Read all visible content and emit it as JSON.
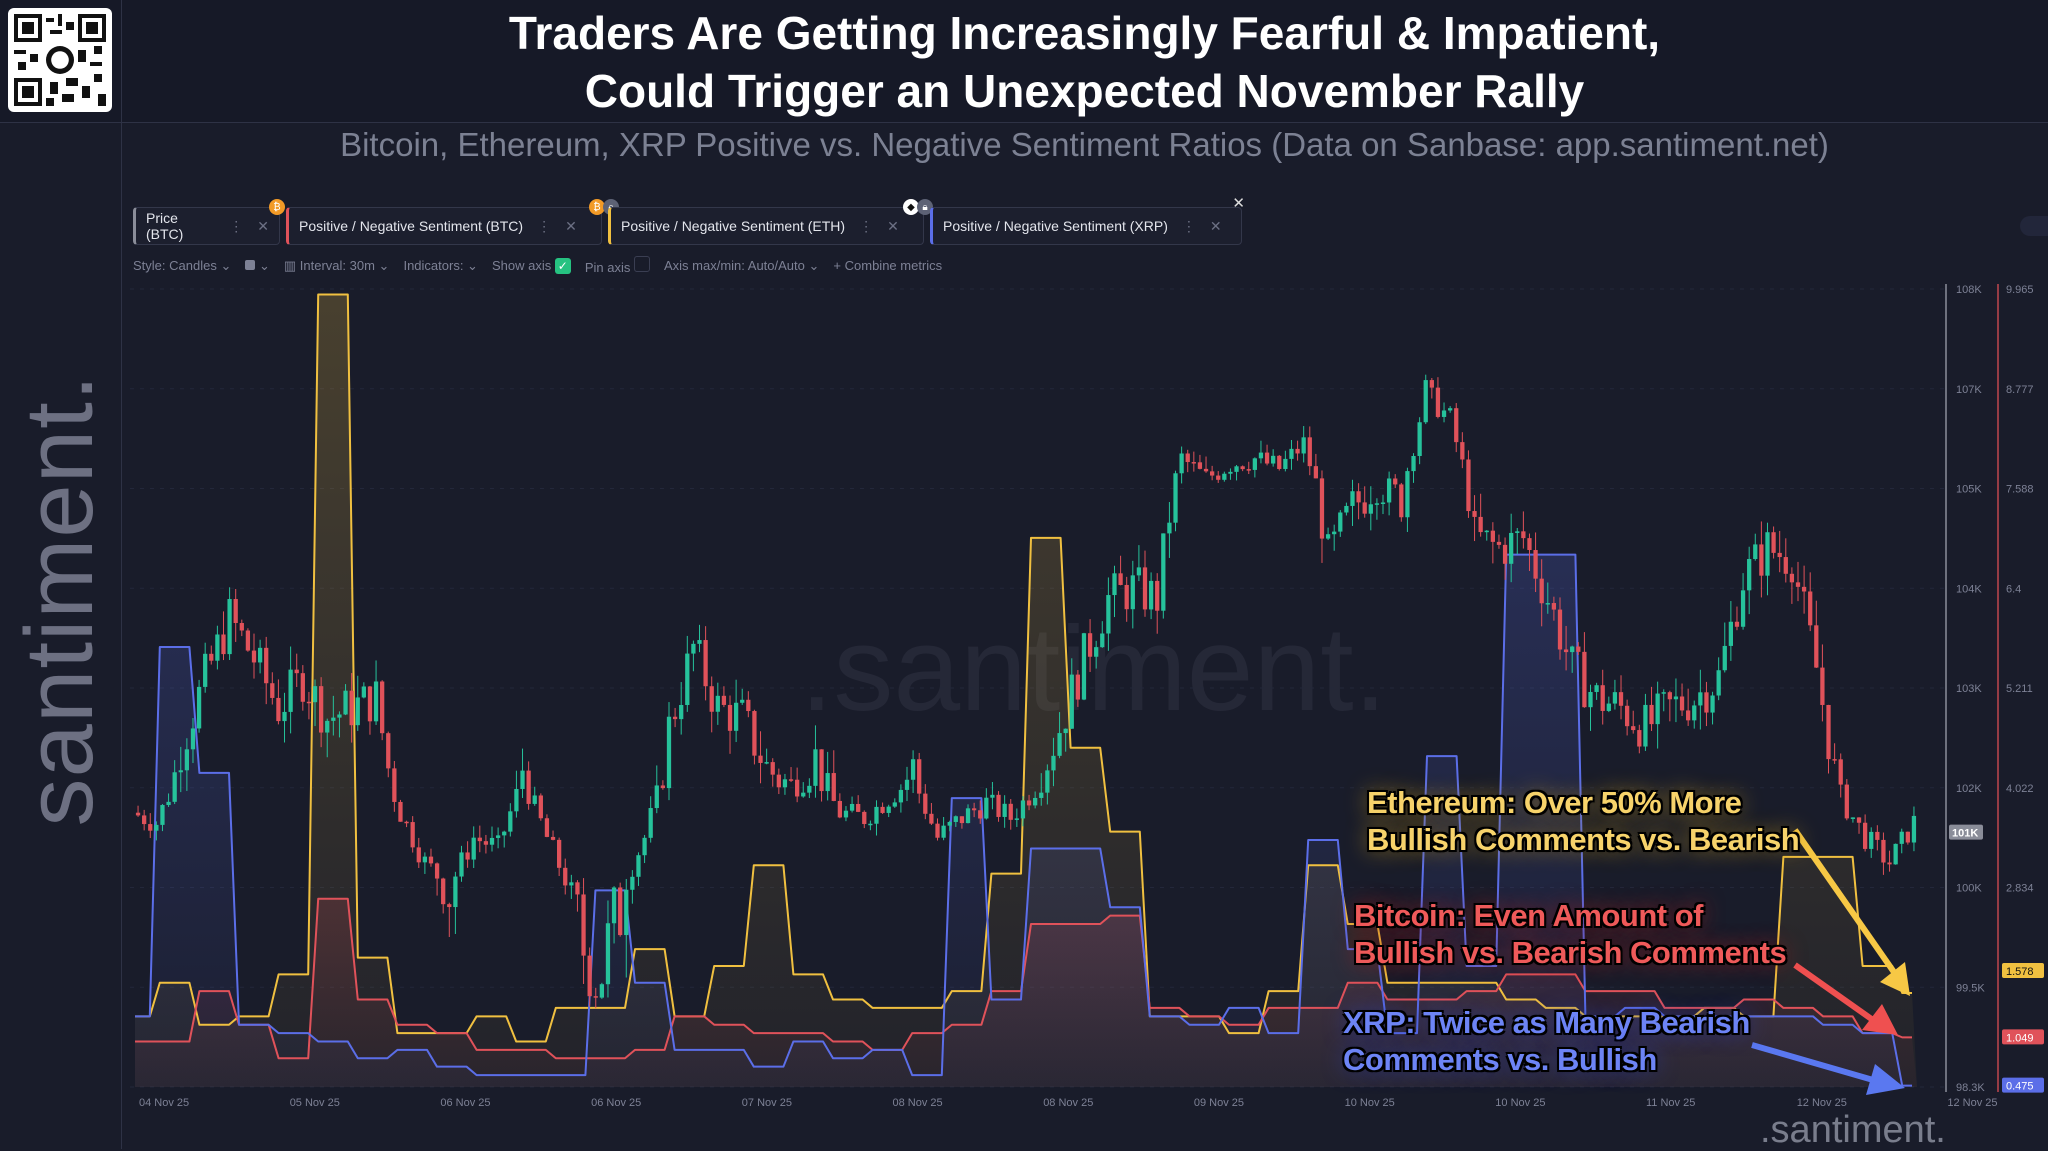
{
  "header": {
    "title_line1": "Traders Are Getting Increasingly Fearful & Impatient,",
    "title_line2": "Could Trigger an Unexpected November Rally",
    "subtitle": "Bitcoin, Ethereum, XRP Positive vs. Negative Sentiment Ratios (Data on Sanbase: app.santiment.net)",
    "logo": "santiment."
  },
  "tabs": [
    {
      "label": "Price (BTC)",
      "color": "#8a8d99",
      "icon": "bitcoin-icon"
    },
    {
      "label": "Positive / Negative Sentiment (BTC)",
      "color": "#e0525a",
      "icon": "bitcoin-icon"
    },
    {
      "label": "Positive / Negative Sentiment (ETH)",
      "color": "#f0c040",
      "icon": "ethereum-icon"
    },
    {
      "label": "Positive / Negative Sentiment (XRP)",
      "color": "#5b6ee8",
      "icon": "xrp-icon"
    }
  ],
  "toolbar": {
    "style": "Style: Candles",
    "interval": "Interval: 30m",
    "indicators": "Indicators:",
    "show_axis": "Show axis",
    "show_axis_checked": true,
    "pin_axis": "Pin axis",
    "pin_axis_checked": false,
    "axis_maxmin": "Axis max/min: Auto/Auto",
    "combine": "Combine metrics"
  },
  "watermark": ".santiment.",
  "annotations": {
    "eth": [
      "Ethereum: Over 50% More",
      "Bullish Comments vs. Bearish"
    ],
    "btc": [
      "Bitcoin: Even Amount of",
      "Bullish vs. Bearish Comments"
    ],
    "xrp": [
      "XRP: Twice as Many Bearish",
      "Comments vs. Bullish"
    ]
  },
  "chart_data": {
    "type": "line",
    "x_tick_labels": [
      "04 Nov 25",
      "05 Nov 25",
      "06 Nov 25",
      "06 Nov 25",
      "07 Nov 25",
      "08 Nov 25",
      "08 Nov 25",
      "09 Nov 25",
      "10 Nov 25",
      "10 Nov 25",
      "11 Nov 25",
      "12 Nov 25",
      "12 Nov 25"
    ],
    "price_axis": {
      "ticks": [
        "108K",
        "107K",
        "105K",
        "104K",
        "103K",
        "102K",
        "100K",
        "99.5K",
        "98.3K"
      ],
      "tick_values": [
        108,
        107,
        105,
        104,
        103,
        102,
        100,
        99.5,
        98.3
      ],
      "current_label": "101K",
      "current_value": 101.1
    },
    "sentiment_axis": {
      "ticks": [
        "9.965",
        "8.777",
        "7.588",
        "6.4",
        "5.211",
        "4.022",
        "2.834"
      ],
      "min": 0.458,
      "max": 9.965
    },
    "grid": true,
    "series": [
      {
        "name": "Price (BTC)",
        "unit": "K USD",
        "style": "candles",
        "color_up": "#26c29b",
        "color_down": "#e0525a",
        "values": [
          101.5,
          101.3,
          102.4,
          103.1,
          103.7,
          103.3,
          102.8,
          103.1,
          102.7,
          102.8,
          102.9,
          101.5,
          100.5,
          100.0,
          101.0,
          100.8,
          102.2,
          101.0,
          99.9,
          99.5,
          99.9,
          101.0,
          102.6,
          103.4,
          102.8,
          102.7,
          102.2,
          102.0,
          102.3,
          101.5,
          101.4,
          101.8,
          102.2,
          101.0,
          101.4,
          101.7,
          101.4,
          102.0,
          102.6,
          103.3,
          103.9,
          104.0,
          103.9,
          105.6,
          105.2,
          105.5,
          105.6,
          105.4,
          105.9,
          104.3,
          104.8,
          105.1,
          104.9,
          106.9,
          106.4,
          104.5,
          104.4,
          104.5,
          103.9,
          103.2,
          102.9,
          102.8,
          102.6,
          102.8,
          102.9,
          103.1,
          104.1,
          104.4,
          104.3,
          103.2,
          101.8,
          101.0,
          100.5,
          101.3
        ]
      },
      {
        "name": "Positive / Negative Sentiment (ETH)",
        "color": "#f0c040",
        "style": "step",
        "last_value": "1.578",
        "values": [
          1.3,
          1.7,
          1.2,
          1.3,
          1.8,
          9.9,
          2.0,
          1.1,
          1.1,
          1.3,
          1.0,
          1.4,
          1.4,
          2.1,
          1.3,
          1.9,
          3.1,
          1.8,
          1.5,
          1.4,
          1.4,
          1.6,
          3.0,
          7.0,
          4.5,
          3.5,
          1.3,
          1.3,
          1.1,
          1.6,
          3.1,
          2.4,
          1.7,
          1.7,
          1.7,
          1.5,
          1.4,
          1.3,
          1.3,
          1.3,
          1.4,
          1.3,
          3.2,
          3.2,
          1.9,
          1.578
        ]
      },
      {
        "name": "Positive / Negative Sentiment (BTC)",
        "color": "#e0525a",
        "style": "step",
        "last_value": "1.049",
        "values": [
          1.0,
          1.0,
          1.6,
          1.2,
          0.8,
          2.7,
          1.5,
          1.2,
          1.1,
          0.9,
          0.9,
          0.8,
          0.8,
          0.9,
          1.3,
          1.2,
          1.1,
          1.1,
          1.0,
          0.9,
          1.1,
          1.2,
          1.6,
          2.4,
          2.4,
          2.5,
          1.4,
          1.3,
          1.2,
          1.4,
          1.4,
          1.7,
          1.5,
          1.5,
          1.6,
          1.8,
          1.8,
          1.6,
          1.6,
          1.4,
          1.4,
          1.5,
          1.4,
          1.3,
          1.1,
          1.049
        ]
      },
      {
        "name": "Positive / Negative Sentiment (XRP)",
        "color": "#5b6ee8",
        "style": "step",
        "last_value": "0.475",
        "values": [
          1.3,
          5.7,
          4.2,
          1.2,
          1.1,
          1.0,
          0.8,
          0.9,
          0.7,
          0.6,
          0.6,
          0.6,
          2.8,
          1.7,
          0.9,
          0.9,
          0.7,
          1.0,
          0.8,
          0.9,
          0.6,
          3.9,
          1.5,
          3.3,
          3.3,
          2.6,
          1.3,
          1.2,
          1.4,
          1.1,
          3.4,
          2.1,
          1.1,
          4.4,
          1.9,
          6.8,
          6.8,
          1.3,
          1.4,
          1.3,
          1.3,
          1.3,
          1.3,
          1.2,
          1.1,
          0.475
        ]
      }
    ]
  }
}
